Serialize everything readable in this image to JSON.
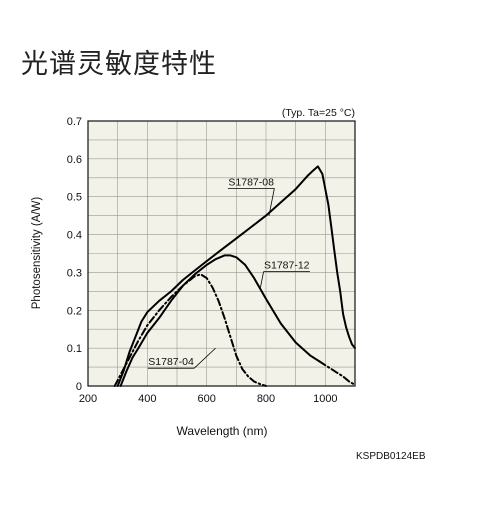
{
  "page": {
    "title": "光谱灵敏度特性",
    "doc_code": "KSPDB0124EB"
  },
  "chart_data": {
    "type": "line",
    "annotation": "(Typ. Ta=25 °C)",
    "xlabel": "Wavelength (nm)",
    "ylabel": "Photosensitivity (A/W)",
    "xlim": [
      200,
      1100
    ],
    "ylim": [
      0,
      0.7
    ],
    "x_ticks": [
      200,
      400,
      600,
      800,
      1000
    ],
    "y_ticks": [
      0,
      0.1,
      0.2,
      0.3,
      0.4,
      0.5,
      0.6,
      0.7
    ],
    "x_tick_labels": [
      "200",
      "400",
      "600",
      "800",
      "1000"
    ],
    "y_tick_labels": [
      "0",
      "0.1",
      "0.2",
      "0.3",
      "0.4",
      "0.5",
      "0.6",
      "0.7"
    ],
    "grid": true,
    "background_color": "#f2f2e8",
    "series": [
      {
        "name": "S1787-08",
        "style": "solid",
        "x": [
          300,
          320,
          340,
          360,
          380,
          400,
          440,
          480,
          520,
          560,
          600,
          650,
          700,
          750,
          800,
          850,
          900,
          940,
          960,
          975,
          990,
          1000,
          1010,
          1020,
          1030,
          1040,
          1050,
          1060,
          1070,
          1080,
          1090,
          1100
        ],
        "y": [
          0.0,
          0.04,
          0.09,
          0.13,
          0.17,
          0.195,
          0.225,
          0.25,
          0.28,
          0.305,
          0.33,
          0.36,
          0.39,
          0.42,
          0.45,
          0.485,
          0.52,
          0.555,
          0.57,
          0.58,
          0.56,
          0.52,
          0.48,
          0.42,
          0.36,
          0.3,
          0.25,
          0.19,
          0.155,
          0.13,
          0.11,
          0.1
        ]
      },
      {
        "name": "S1787-12",
        "style": "solid",
        "x": [
          310,
          330,
          350,
          370,
          400,
          440,
          480,
          520,
          560,
          600,
          630,
          660,
          680,
          700,
          730,
          760,
          800,
          850,
          900,
          950,
          980
        ],
        "y": [
          0.0,
          0.04,
          0.075,
          0.1,
          0.14,
          0.18,
          0.225,
          0.265,
          0.295,
          0.32,
          0.335,
          0.345,
          0.345,
          0.34,
          0.32,
          0.285,
          0.23,
          0.165,
          0.115,
          0.08,
          0.065
        ]
      },
      {
        "name": "S1787-04",
        "style": "dashdot",
        "x": [
          290,
          310,
          330,
          350,
          370,
          400,
          440,
          480,
          520,
          560,
          580,
          600,
          620,
          640,
          660,
          680,
          700,
          720,
          740,
          760,
          780,
          800
        ],
        "y": [
          0.0,
          0.03,
          0.06,
          0.09,
          0.12,
          0.16,
          0.2,
          0.235,
          0.265,
          0.29,
          0.295,
          0.285,
          0.26,
          0.225,
          0.18,
          0.13,
          0.08,
          0.045,
          0.025,
          0.012,
          0.005,
          0.0
        ]
      },
      {
        "name": "",
        "style": "dashdot",
        "x": [
          980,
          1000,
          1020,
          1040,
          1060,
          1080,
          1100
        ],
        "y": [
          0.065,
          0.055,
          0.045,
          0.035,
          0.025,
          0.012,
          0.003
        ]
      }
    ],
    "series_labels": [
      {
        "text": "S1787-08",
        "x": 750,
        "y": 0.53,
        "lead_to": [
          810,
          0.45
        ]
      },
      {
        "text": "S1787-12",
        "x": 870,
        "y": 0.31,
        "lead_to": [
          780,
          0.255
        ]
      },
      {
        "text": "S1787-04",
        "x": 480,
        "y": 0.055,
        "lead_to": [
          630,
          0.1
        ]
      }
    ]
  }
}
